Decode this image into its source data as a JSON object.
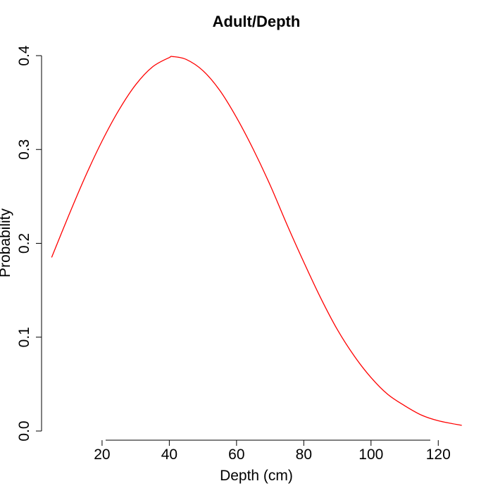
{
  "chart_data": {
    "type": "line",
    "title": "Adult/Depth",
    "xlabel": "Depth (cm)",
    "ylabel": "Probability",
    "xlim": [
      2,
      130
    ],
    "ylim": [
      0,
      0.4
    ],
    "x_ticks": [
      20,
      40,
      60,
      80,
      100,
      120
    ],
    "x_tick_labels": [
      "20",
      "40",
      "60",
      "80",
      "100",
      "120"
    ],
    "y_ticks": [
      0,
      0.1,
      0.2,
      0.3,
      0.4
    ],
    "y_tick_labels": [
      "0.0",
      "0.1",
      "0.2",
      "0.3",
      "0.4"
    ],
    "grid": false,
    "legend": "none",
    "colors": {
      "line": "#ff0000",
      "axes": "#000000"
    },
    "series": [
      {
        "x": [
          5,
          10,
          15,
          20,
          25,
          30,
          35,
          40,
          41,
          45,
          50,
          55,
          60,
          65,
          70,
          75,
          80,
          85,
          90,
          95,
          100,
          105,
          110,
          115,
          120,
          127
        ],
        "values": [
          0.185,
          0.229,
          0.271,
          0.309,
          0.342,
          0.369,
          0.388,
          0.398,
          0.399,
          0.396,
          0.384,
          0.363,
          0.334,
          0.3,
          0.262,
          0.22,
          0.18,
          0.142,
          0.108,
          0.08,
          0.057,
          0.039,
          0.027,
          0.017,
          0.011,
          0.006
        ]
      }
    ]
  }
}
